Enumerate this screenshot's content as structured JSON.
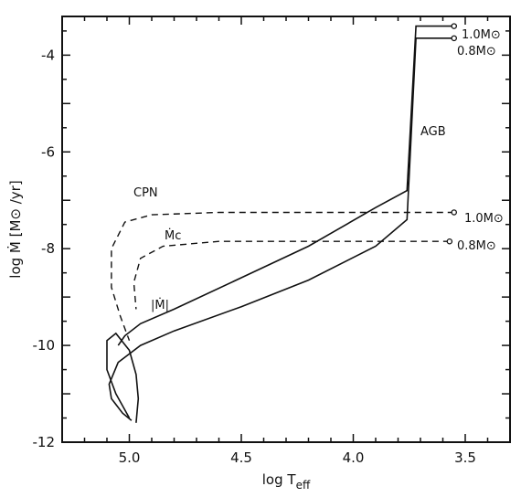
{
  "chart_data": {
    "type": "line",
    "xlabel": "log T",
    "xlabel_sub": "eff",
    "ylabel": "log Ṁ [M⊙ /yr]",
    "xlim": [
      5.3,
      3.3
    ],
    "ylim": [
      -12,
      -3.2
    ],
    "x_ticks": [
      "5.0",
      "4.5",
      "4.0",
      "3.5"
    ],
    "y_ticks": [
      "-4",
      "-6",
      "-8",
      "-10",
      "-12"
    ],
    "axis_reversed_x": true,
    "annotations": {
      "agb": "AGB",
      "cpn": "CPN",
      "mc": "Ṁc",
      "m": "|Ṁ|",
      "mass_10_top": "1.0M⊙",
      "mass_08_top": "0.8M⊙",
      "mass_10_mid": "1.0M⊙",
      "mass_08_mid": "0.8M⊙"
    },
    "series": [
      {
        "style": "solid",
        "label": "1.0M⊙",
        "x": [
          3.55,
          3.72,
          3.76,
          3.76,
          3.9,
          4.2,
          4.5,
          4.8,
          4.95,
          5.02,
          5.05
        ],
        "y": [
          -3.4,
          -3.4,
          -6.8,
          -6.8,
          -7.15,
          -7.95,
          -8.6,
          -9.25,
          -9.55,
          -9.8,
          -10.0
        ]
      },
      {
        "style": "solid",
        "label": "0.8M⊙",
        "x": [
          3.55,
          3.72,
          3.76,
          3.76,
          3.9,
          4.2,
          4.5,
          4.8,
          4.95,
          5.05,
          5.09,
          5.08,
          5.03,
          4.99
        ],
        "y": [
          -3.65,
          -3.65,
          -7.4,
          -7.4,
          -7.95,
          -8.65,
          -9.2,
          -9.7,
          -10.0,
          -10.35,
          -10.8,
          -11.1,
          -11.4,
          -11.55
        ]
      },
      {
        "style": "solid",
        "label": "",
        "x": [
          4.97,
          4.96,
          4.97,
          5.0,
          5.06,
          5.1,
          5.1,
          5.06,
          5.0
        ],
        "y": [
          -11.6,
          -11.1,
          -10.6,
          -10.1,
          -9.75,
          -9.9,
          -10.5,
          -11.0,
          -11.5
        ]
      },
      {
        "style": "dashed",
        "label": "Ṁc 1.0M⊙",
        "x": [
          3.55,
          3.8,
          4.2,
          4.6,
          4.9,
          5.02,
          5.08,
          5.08,
          5.04,
          5.0
        ],
        "y": [
          -7.25,
          -7.25,
          -7.25,
          -7.25,
          -7.3,
          -7.45,
          -8.0,
          -8.8,
          -9.4,
          -9.9
        ]
      },
      {
        "style": "dashed",
        "label": "Ṁc 0.8M⊙",
        "x": [
          3.57,
          3.8,
          4.2,
          4.6,
          4.85,
          4.95,
          4.98,
          4.97
        ],
        "y": [
          -7.85,
          -7.85,
          -7.85,
          -7.85,
          -7.95,
          -8.2,
          -8.7,
          -9.25
        ]
      }
    ],
    "endpoints": [
      {
        "x": 3.55,
        "y": -3.4
      },
      {
        "x": 3.55,
        "y": -3.65
      },
      {
        "x": 3.55,
        "y": -7.25
      },
      {
        "x": 3.57,
        "y": -7.85
      }
    ]
  }
}
